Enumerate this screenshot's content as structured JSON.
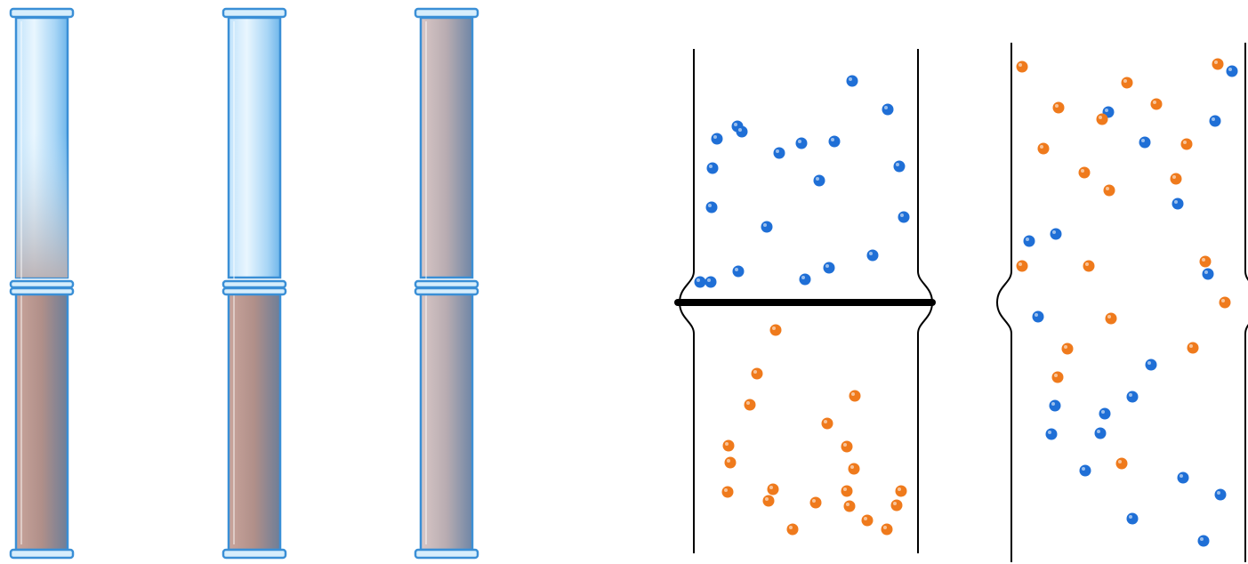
{
  "tubes": [
    {
      "name": "tube-1",
      "top_content": "light",
      "bottom_content": "mixed-brown"
    },
    {
      "name": "tube-2",
      "top_content": "light",
      "bottom_content": "brown"
    },
    {
      "name": "tube-3",
      "top_content": "mixed",
      "bottom_content": "mixed"
    }
  ],
  "colors": {
    "glass_edge": "#3a8fd6",
    "glass_light": "#cfe9fb",
    "brown": "#a98a85",
    "grey_mix": "#b7b0b6",
    "blue_particle": "#1f6fd6",
    "orange_particle": "#ef7a1c",
    "divider": "#000000"
  },
  "containers": [
    {
      "name": "separated-container",
      "divider": true
    },
    {
      "name": "mixed-container",
      "divider": false
    }
  ]
}
